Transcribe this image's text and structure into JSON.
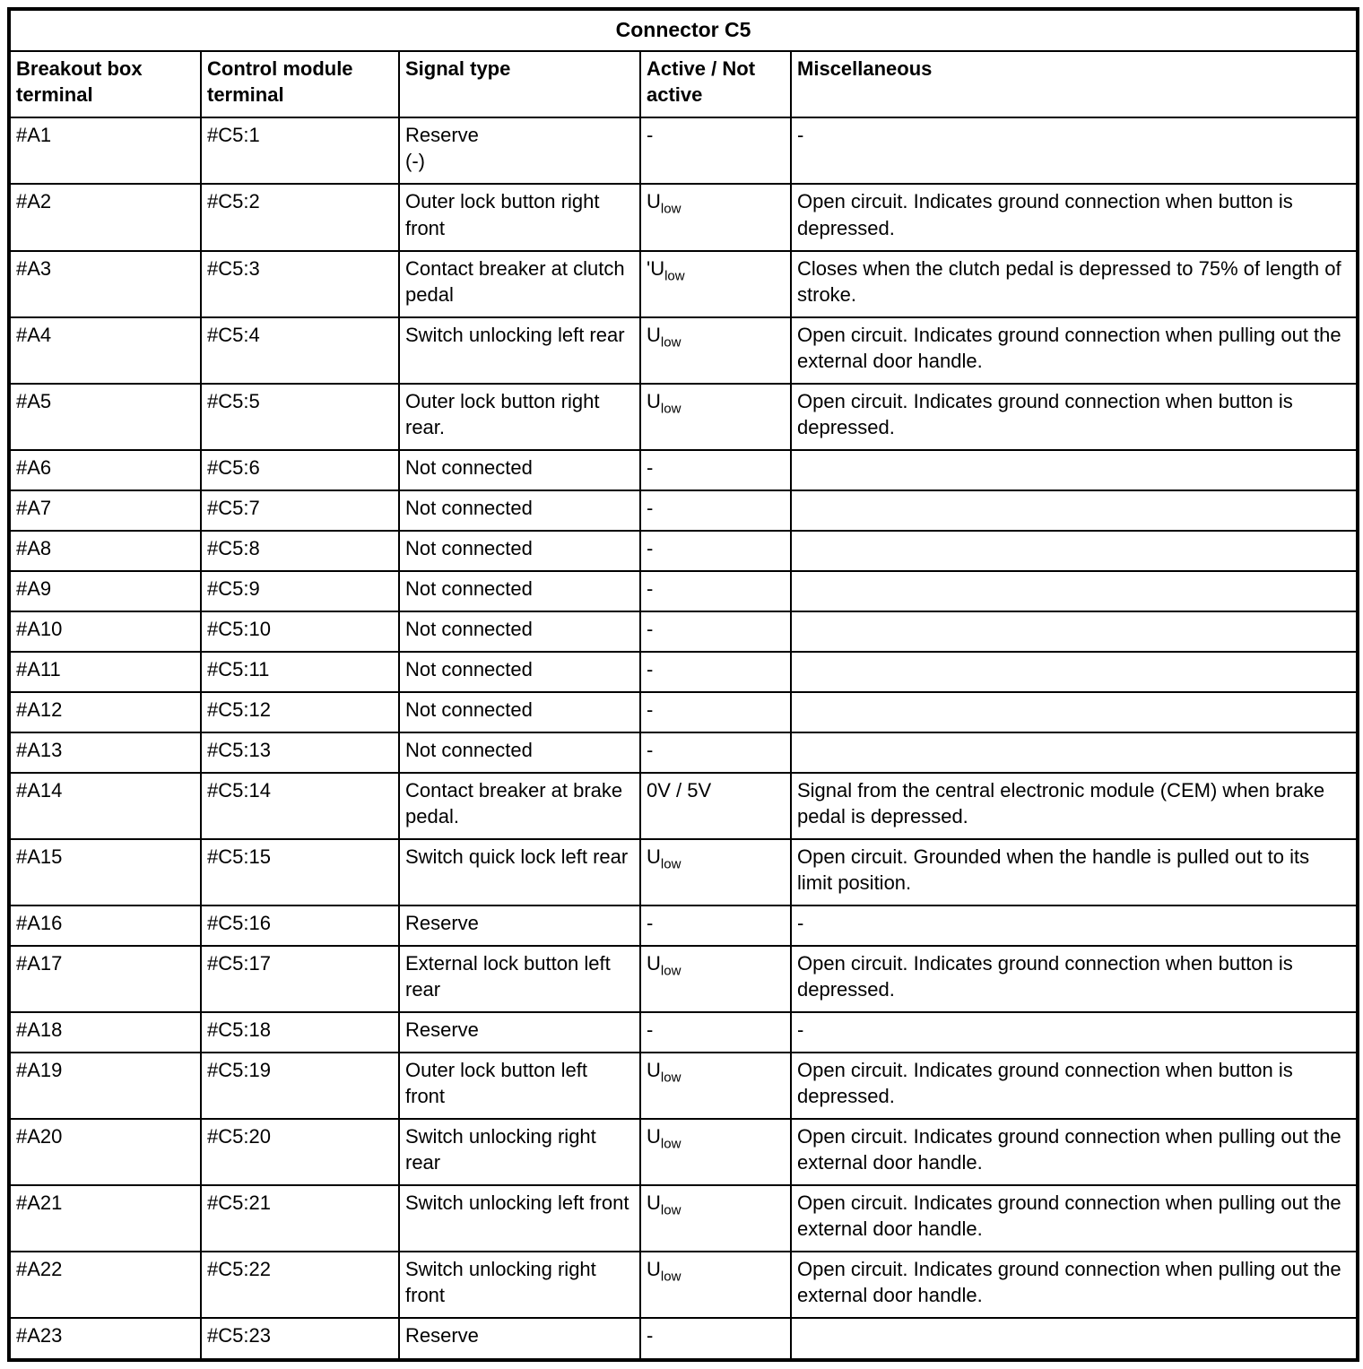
{
  "table": {
    "title": "Connector C5",
    "headers": [
      "Breakout box terminal",
      "Control module terminal",
      "Signal type",
      "Active / Not active",
      "Miscellaneous"
    ],
    "rows": [
      {
        "breakout": "#A1",
        "module": "#C5:1",
        "signal": "Reserve\n(-)",
        "active": {
          "base": "-",
          "sub": ""
        },
        "misc": "-"
      },
      {
        "breakout": "#A2",
        "module": "#C5:2",
        "signal": "Outer lock button right front",
        "active": {
          "base": "U",
          "sub": "low"
        },
        "misc": "Open circuit. Indicates ground connection when button is depressed."
      },
      {
        "breakout": "#A3",
        "module": "#C5:3",
        "signal": "Contact breaker at clutch pedal",
        "active": {
          "base": "'U",
          "sub": "low"
        },
        "misc": "Closes when the clutch pedal is depressed to 75% of length of stroke."
      },
      {
        "breakout": "#A4",
        "module": "#C5:4",
        "signal": "Switch unlocking left rear",
        "active": {
          "base": "U",
          "sub": "low"
        },
        "misc": "Open circuit. Indicates ground connection when pulling out the external door handle."
      },
      {
        "breakout": "#A5",
        "module": "#C5:5",
        "signal": "Outer lock button right rear.",
        "active": {
          "base": "U",
          "sub": "low"
        },
        "misc": "Open circuit. Indicates ground connection when button is depressed."
      },
      {
        "breakout": "#A6",
        "module": "#C5:6",
        "signal": "Not connected",
        "active": {
          "base": "-",
          "sub": ""
        },
        "misc": ""
      },
      {
        "breakout": "#A7",
        "module": "#C5:7",
        "signal": "Not connected",
        "active": {
          "base": "-",
          "sub": ""
        },
        "misc": ""
      },
      {
        "breakout": "#A8",
        "module": "#C5:8",
        "signal": "Not connected",
        "active": {
          "base": "-",
          "sub": ""
        },
        "misc": ""
      },
      {
        "breakout": "#A9",
        "module": "#C5:9",
        "signal": "Not connected",
        "active": {
          "base": "-",
          "sub": ""
        },
        "misc": ""
      },
      {
        "breakout": "#A10",
        "module": "#C5:10",
        "signal": "Not connected",
        "active": {
          "base": "-",
          "sub": ""
        },
        "misc": ""
      },
      {
        "breakout": "#A11",
        "module": "#C5:11",
        "signal": "Not connected",
        "active": {
          "base": "-",
          "sub": ""
        },
        "misc": ""
      },
      {
        "breakout": "#A12",
        "module": "#C5:12",
        "signal": "Not connected",
        "active": {
          "base": "-",
          "sub": ""
        },
        "misc": ""
      },
      {
        "breakout": "#A13",
        "module": "#C5:13",
        "signal": "Not connected",
        "active": {
          "base": "-",
          "sub": ""
        },
        "misc": ""
      },
      {
        "breakout": "#A14",
        "module": "#C5:14",
        "signal": "Contact breaker at brake pedal.",
        "active": {
          "base": "0V / 5V",
          "sub": ""
        },
        "misc": "Signal from the central electronic module (CEM) when brake pedal is depressed."
      },
      {
        "breakout": "#A15",
        "module": "#C5:15",
        "signal": "Switch quick lock left rear",
        "active": {
          "base": "U",
          "sub": "low"
        },
        "misc": "Open circuit. Grounded when the handle is pulled out to its limit position."
      },
      {
        "breakout": "#A16",
        "module": "#C5:16",
        "signal": "Reserve",
        "active": {
          "base": "-",
          "sub": ""
        },
        "misc": "-"
      },
      {
        "breakout": "#A17",
        "module": "#C5:17",
        "signal": "External lock button left rear",
        "active": {
          "base": "U",
          "sub": "low"
        },
        "misc": "Open circuit. Indicates ground connection when button is depressed."
      },
      {
        "breakout": "#A18",
        "module": "#C5:18",
        "signal": "Reserve",
        "active": {
          "base": "-",
          "sub": ""
        },
        "misc": "-"
      },
      {
        "breakout": "#A19",
        "module": "#C5:19",
        "signal": "Outer lock button left front",
        "active": {
          "base": "U",
          "sub": "low"
        },
        "misc": "Open circuit. Indicates ground connection when button is depressed."
      },
      {
        "breakout": "#A20",
        "module": "#C5:20",
        "signal": "Switch unlocking right rear",
        "active": {
          "base": "U",
          "sub": "low"
        },
        "misc": "Open circuit. Indicates ground connection when pulling out the external door handle."
      },
      {
        "breakout": "#A21",
        "module": "#C5:21",
        "signal": "Switch unlocking left front",
        "active": {
          "base": "U",
          "sub": "low"
        },
        "misc": "Open circuit. Indicates ground connection when pulling out the external door handle."
      },
      {
        "breakout": "#A22",
        "module": "#C5:22",
        "signal": "Switch unlocking right front",
        "active": {
          "base": "U",
          "sub": "low"
        },
        "misc": "Open circuit. Indicates ground connection when pulling out the external door handle."
      },
      {
        "breakout": "#A23",
        "module": "#C5:23",
        "signal": "Reserve",
        "active": {
          "base": "-",
          "sub": ""
        },
        "misc": ""
      }
    ]
  }
}
